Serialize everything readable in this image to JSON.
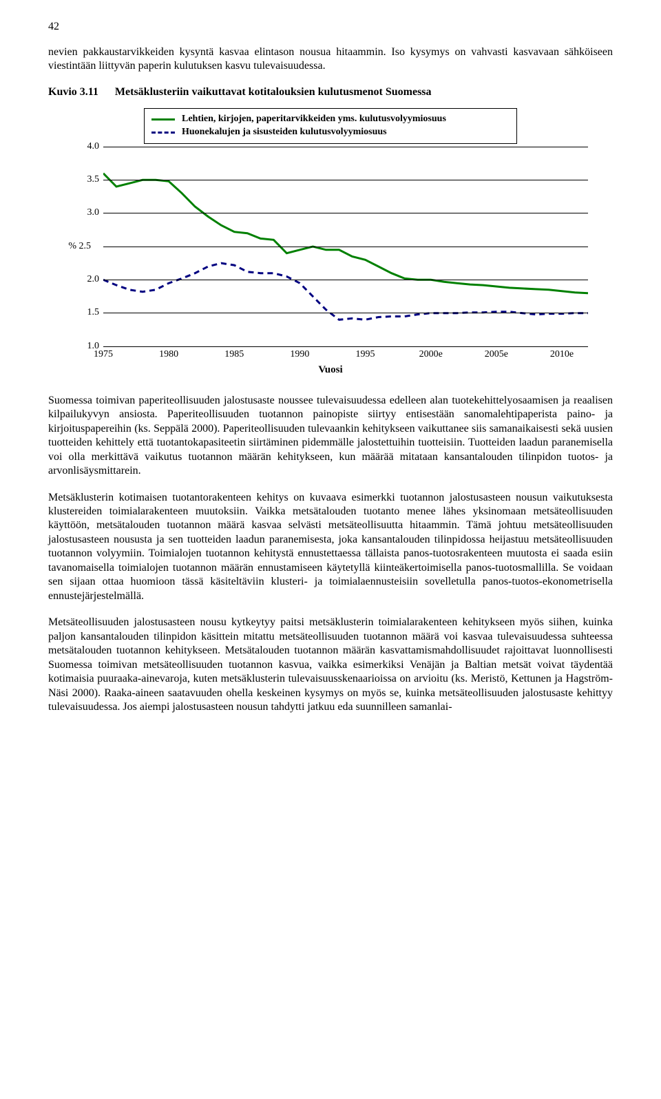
{
  "page_number": "42",
  "intro_paragraph": "nevien pakkaustarvikkeiden kysyntä kasvaa elintason nousua hitaammin. Iso kysymys on vahvasti kasvavaan sähköiseen viestintään liittyvän paperin kulutuksen kasvu tulevaisuudessa.",
  "figure": {
    "label": "Kuvio 3.11",
    "caption": "Metsäklusteriin vaikuttavat kotitalouksien kulutusmenot Suomessa"
  },
  "chart": {
    "type": "line",
    "x_axis_title": "Vuosi",
    "y_unit": "%",
    "ylim": [
      1.0,
      4.0
    ],
    "ytick_step": 0.5,
    "y_ticks": [
      "1.0",
      "1.5",
      "2.0",
      "2.5",
      "3.0",
      "3.5",
      "4.0"
    ],
    "x_ticks": [
      "1975",
      "1980",
      "1985",
      "1990",
      "1995",
      "2000e",
      "2005e",
      "2010e"
    ],
    "x_values": [
      1975,
      1976,
      1977,
      1978,
      1979,
      1980,
      1981,
      1982,
      1983,
      1984,
      1985,
      1986,
      1987,
      1988,
      1989,
      1990,
      1991,
      1992,
      1993,
      1994,
      1995,
      1996,
      1997,
      1998,
      1999,
      2000,
      2001,
      2002,
      2003,
      2004,
      2005,
      2006,
      2007,
      2008,
      2009,
      2010,
      2011,
      2012
    ],
    "x_min": 1975,
    "x_max": 2012,
    "grid_color": "#000000",
    "background_color": "#ffffff",
    "legend": [
      {
        "label": "Lehtien, kirjojen, paperitarvikkeiden yms. kulutusvolyymiosuus",
        "color": "#008000",
        "dash": "solid",
        "width": 3
      },
      {
        "label": "Huonekalujen ja sisusteiden kulutusvolyymiosuus",
        "color": "#000080",
        "dash": "8,6",
        "width": 3
      }
    ],
    "series": [
      {
        "name": "paper",
        "color": "#008000",
        "dash": "solid",
        "width": 3,
        "values": [
          3.6,
          3.4,
          3.45,
          3.5,
          3.5,
          3.48,
          3.3,
          3.1,
          2.95,
          2.82,
          2.72,
          2.7,
          2.62,
          2.6,
          2.4,
          2.45,
          2.5,
          2.45,
          2.45,
          2.35,
          2.3,
          2.2,
          2.1,
          2.02,
          2.0,
          2.0,
          1.97,
          1.95,
          1.93,
          1.92,
          1.9,
          1.88,
          1.87,
          1.86,
          1.85,
          1.83,
          1.81,
          1.8
        ]
      },
      {
        "name": "furniture",
        "color": "#000080",
        "dash": "8,6",
        "width": 3,
        "values": [
          2.0,
          1.92,
          1.85,
          1.82,
          1.85,
          1.95,
          2.02,
          2.1,
          2.2,
          2.25,
          2.22,
          2.12,
          2.1,
          2.1,
          2.05,
          1.95,
          1.75,
          1.55,
          1.4,
          1.42,
          1.4,
          1.44,
          1.45,
          1.45,
          1.48,
          1.5,
          1.5,
          1.5,
          1.51,
          1.51,
          1.52,
          1.52,
          1.5,
          1.48,
          1.49,
          1.49,
          1.5,
          1.5
        ]
      }
    ]
  },
  "paragraphs": [
    "Suomessa toimivan paperiteollisuuden jalostusaste noussee tulevaisuudessa edelleen alan tuotekehittelyosaamisen ja reaalisen kilpailukyvyn ansiosta. Paperiteollisuuden tuotannon painopiste siirtyy entisestään sanomalehtipaperista paino- ja kirjoituspapereihin (ks. Seppälä 2000). Paperiteollisuuden tulevaankin kehitykseen vaikuttanee siis samanaikaisesti sekä uusien tuotteiden kehittely että tuotantokapasiteetin siirtäminen pidemmälle jalostettuihin tuotteisiin. Tuotteiden laadun paranemisella voi olla merkittävä vaikutus tuotannon määrän kehitykseen, kun määrää mitataan kansantalouden tilinpidon tuotos- ja arvonlisäysmittarein.",
    "Metsäklusterin kotimaisen tuotantorakenteen kehitys on kuvaava esimerkki tuotannon jalostusasteen nousun vaikutuksesta klustereiden toimialarakenteen muutoksiin. Vaikka metsätalouden tuotanto menee lähes yksinomaan metsäteollisuuden käyttöön, metsätalouden tuotannon määrä kasvaa selvästi metsäteollisuutta hitaammin. Tämä johtuu metsäteollisuuden jalostusasteen noususta ja sen tuotteiden laadun paranemisesta, joka kansantalouden tilinpidossa heijastuu metsäteollisuuden tuotannon volyymiin. Toimialojen tuotannon kehitystä ennustettaessa tällaista panos-tuotosrakenteen muutosta ei saada esiin tavanomaisella toimialojen tuotannon määrän ennustamiseen käytetyllä kiinteäkertoimisella panos-tuotosmallilla. Se voidaan sen sijaan ottaa huomioon tässä käsiteltäviin klusteri- ja toimialaennusteisiin sovelletulla panos-tuotos-ekonometrisella ennustejärjestelmällä.",
    "Metsäteollisuuden jalostusasteen nousu kytkeytyy paitsi metsäklusterin toimialarakenteen kehitykseen myös siihen, kuinka paljon kansantalouden tilinpidon käsittein mitattu metsäteollisuuden tuotannon määrä voi kasvaa tulevaisuudessa suhteessa metsätalouden tuotannon kehitykseen. Metsätalouden tuotannon määrän kasvattamismahdollisuudet rajoittavat luonnollisesti Suomessa toimivan metsäteollisuuden tuotannon kasvua, vaikka esimerkiksi Venäjän ja Baltian metsät voivat täydentää kotimaisia puuraaka-ainevaroja, kuten metsäklusterin tulevaisuusskenaarioissa on arvioitu (ks. Meristö, Kettunen ja Hagström-Näsi 2000). Raaka-aineen saatavuuden ohella keskeinen kysymys on myös se, kuinka metsäteollisuuden jalostusaste kehittyy tulevaisuudessa. Jos aiempi jalostusasteen nousun tahdytti jatkuu eda suunnilleen samanlai-"
  ]
}
